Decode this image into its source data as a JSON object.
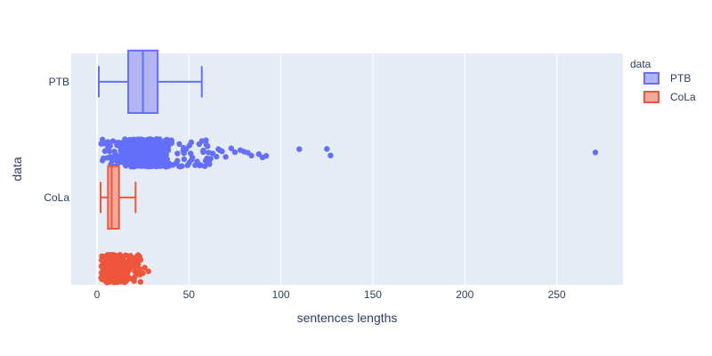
{
  "chart_data": {
    "type": "box",
    "orientation": "horizontal",
    "title": "",
    "xlabel": "sentences lengths",
    "ylabel": "data",
    "xlim": [
      -14,
      286
    ],
    "xticks": [
      0,
      50,
      100,
      150,
      200,
      250
    ],
    "categories": [
      "PTB",
      "CoLa"
    ],
    "legend": {
      "title": "data",
      "placement": "right-top"
    },
    "grid": true,
    "background": "#e5ecf6",
    "series": [
      {
        "name": "PTB",
        "color": "#636efa",
        "fill": "#b1b6f3",
        "min": 1,
        "q1": 17,
        "median": 25,
        "q3": 33,
        "max": 57,
        "dense_range": [
          1,
          62
        ],
        "outliers": [
          63,
          65,
          66,
          67,
          68,
          70,
          73,
          75,
          78,
          80,
          82,
          84,
          88,
          90,
          92,
          110,
          125,
          127,
          271
        ]
      },
      {
        "name": "CoLa",
        "color": "#ef553b",
        "fill": "#f4a99c",
        "min": 2,
        "q1": 6,
        "median": 8,
        "q3": 12,
        "max": 21,
        "dense_range": [
          2,
          24
        ],
        "outliers": [
          25,
          26,
          28
        ]
      }
    ]
  }
}
